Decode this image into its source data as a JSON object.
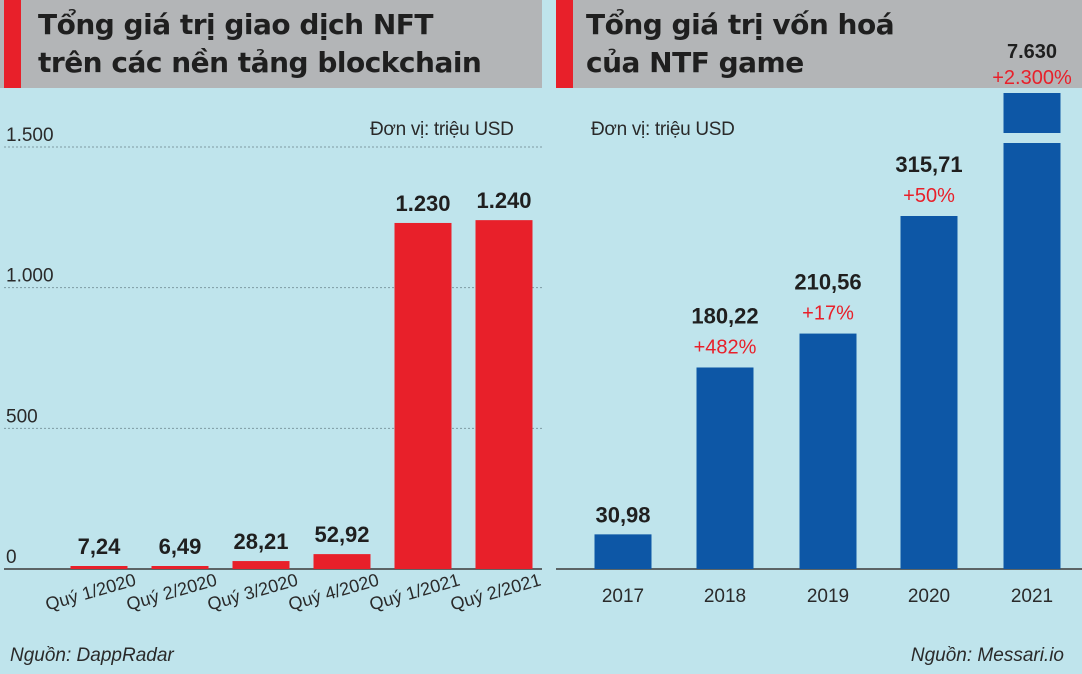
{
  "left_panel": {
    "title_line1": "Tổng giá trị giao dịch NFT",
    "title_line2": "trên các nền tảng blockchain",
    "unit": "Đơn vị: triệu USD",
    "source": "Nguồn: DappRadar"
  },
  "right_panel": {
    "title_line1": "Tổng giá trị vốn hoá",
    "title_line2": "của NTF game",
    "unit": "Đơn vị: triệu USD",
    "source": "Nguồn: Messari.io"
  },
  "colors": {
    "red": "#e8202a",
    "blue": "#0d57a6",
    "background": "#bfe4ec",
    "header": "#b3b5b7",
    "change": "#e8202a"
  },
  "chart_data": [
    {
      "type": "bar",
      "title": "Tổng giá trị giao dịch NFT trên các nền tảng blockchain",
      "ylabel": "Đơn vị: triệu USD",
      "ylim": [
        0,
        1500
      ],
      "yticks": [
        0,
        500,
        1000,
        1500
      ],
      "ytick_labels": [
        "0",
        "500",
        "1.000",
        "1.500"
      ],
      "grid": true,
      "categories": [
        "Quý 1/2020",
        "Quý 2/2020",
        "Quý 3/2020",
        "Quý 4/2020",
        "Quý 1/2021",
        "Quý 2/2021"
      ],
      "values": [
        7.24,
        6.49,
        28.21,
        52.92,
        1230,
        1240
      ],
      "value_labels": [
        "7,24",
        "6,49",
        "28,21",
        "52,92",
        "1.230",
        "1.240"
      ]
    },
    {
      "type": "bar",
      "title": "Tổng giá trị vốn hoá của NTF game",
      "ylabel": "Đơn vị: triệu USD",
      "broken_axis": true,
      "categories": [
        "2017",
        "2018",
        "2019",
        "2020",
        "2021"
      ],
      "values": [
        30.98,
        180.22,
        210.56,
        315.71,
        7630
      ],
      "value_labels": [
        "30,98",
        "180,22",
        "210,56",
        "315,71",
        "7.630"
      ],
      "change_labels": [
        "",
        "+482%",
        "+17%",
        "+50%",
        "+2.300%"
      ]
    }
  ]
}
